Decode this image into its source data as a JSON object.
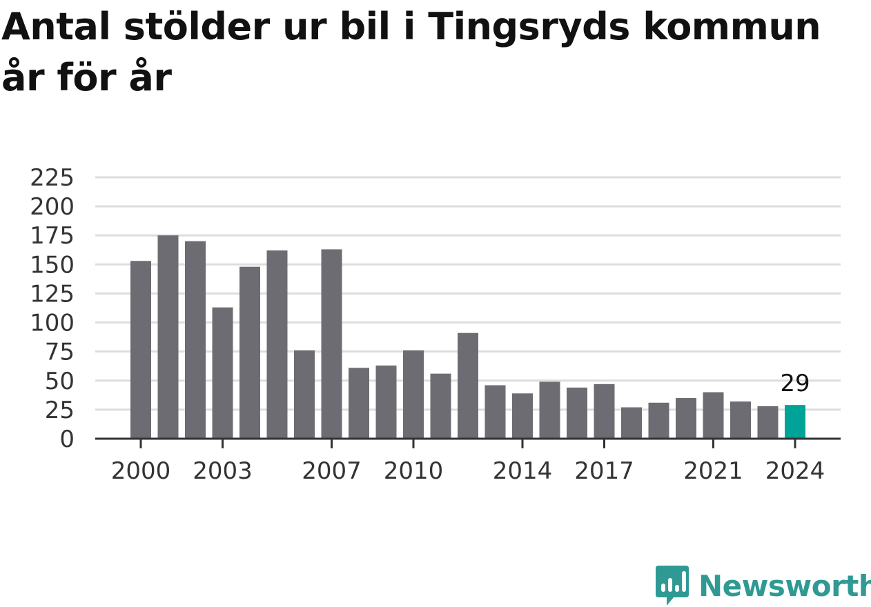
{
  "title": "Antal stölder ur bil i Tingsryds kommun år för år",
  "colors": {
    "bar": "#6d6c72",
    "highlight": "#00a398",
    "grid": "#dddddd",
    "axis": "#333333",
    "brand": "#2f9a94"
  },
  "brand": {
    "name": "Newsworthy",
    "icon": "newsworthy-chart-bubble-icon"
  },
  "chart_data": {
    "type": "bar",
    "title": "Antal stölder ur bil i Tingsryds kommun år för år",
    "xlabel": "",
    "ylabel": "",
    "categories": [
      2000,
      2001,
      2002,
      2003,
      2004,
      2005,
      2006,
      2007,
      2008,
      2009,
      2010,
      2011,
      2012,
      2013,
      2014,
      2015,
      2016,
      2017,
      2018,
      2019,
      2020,
      2021,
      2022,
      2023,
      2024
    ],
    "values": [
      153,
      175,
      170,
      113,
      148,
      162,
      76,
      163,
      61,
      63,
      76,
      56,
      91,
      46,
      39,
      49,
      44,
      47,
      27,
      31,
      35,
      40,
      32,
      28,
      29
    ],
    "x_tick_labels": [
      "2000",
      "2003",
      "2007",
      "2010",
      "2014",
      "2017",
      "2021",
      "2024"
    ],
    "y_ticks": [
      0,
      25,
      50,
      75,
      100,
      125,
      150,
      175,
      200,
      225
    ],
    "ylim": [
      0,
      225
    ],
    "grid": true,
    "highlight": {
      "category": 2024,
      "label": "29"
    }
  }
}
